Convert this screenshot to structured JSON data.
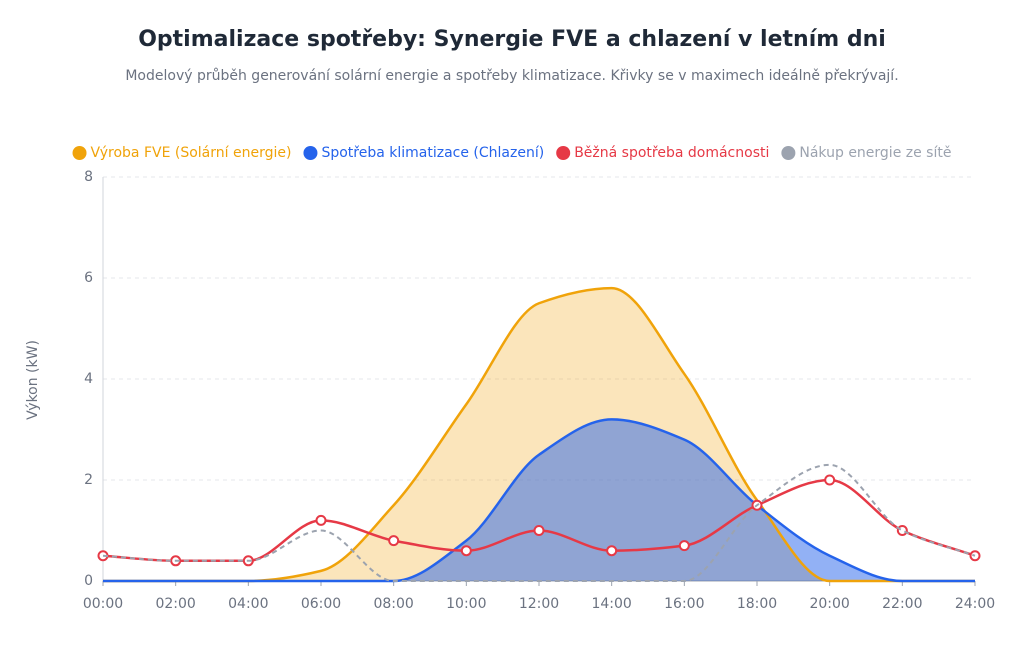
{
  "chart_data": {
    "type": "line",
    "title": "Optimalizace spotřeby: Synergie FVE a chlazení v letním dni",
    "subtitle": "Modelový průběh generování solární energie a spotřeby klimatizace. Křivky se v maximech ideálně překrývají.",
    "y_label": "Výkon (kW)",
    "categories": [
      "00:00",
      "02:00",
      "04:00",
      "06:00",
      "08:00",
      "10:00",
      "12:00",
      "14:00",
      "16:00",
      "18:00",
      "20:00",
      "22:00",
      "24:00"
    ],
    "series": [
      {
        "name": "Výroba FVE (Solární energie)",
        "color": "#f0a30a",
        "fill": true,
        "values": [
          0,
          0,
          0,
          0.2,
          1.5,
          3.5,
          5.5,
          5.8,
          4.1,
          1.6,
          0,
          0,
          0
        ]
      },
      {
        "name": "Spotřeba klimatizace (Chlazení)",
        "color": "#2563eb",
        "fill": true,
        "values": [
          0,
          0,
          0,
          0,
          0,
          0.8,
          2.5,
          3.2,
          2.8,
          1.5,
          0.5,
          0,
          0
        ]
      },
      {
        "name": "Běžná spotřeba domácnosti",
        "color": "#e63946",
        "markers": true,
        "values": [
          0.5,
          0.4,
          0.4,
          1.2,
          0.8,
          0.6,
          1.0,
          0.6,
          0.7,
          1.5,
          2.0,
          1.0,
          0.5
        ]
      },
      {
        "name": "Nákup energie ze sítě",
        "color": "#9ca3af",
        "dashed": true,
        "values": [
          0.5,
          0.4,
          0.4,
          1.0,
          0,
          0,
          0,
          0,
          0,
          1.5,
          2.3,
          1.0,
          0.5
        ]
      }
    ],
    "ylim": [
      0,
      8
    ],
    "yticks": [
      0,
      2,
      4,
      6,
      8
    ],
    "grid": true,
    "legend": "top"
  }
}
